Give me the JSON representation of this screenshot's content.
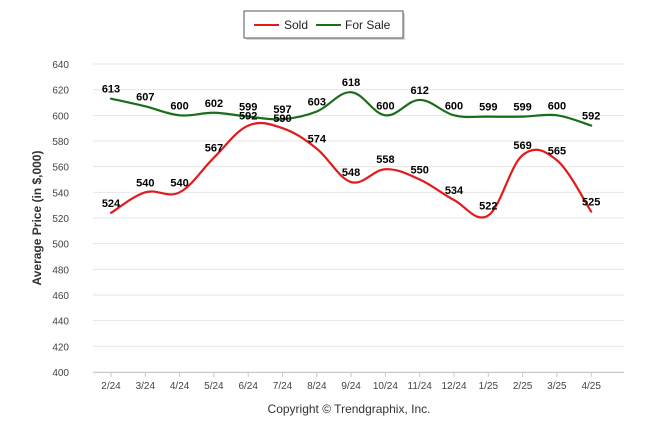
{
  "chart_data": {
    "type": "line",
    "categories": [
      "2/24",
      "3/24",
      "4/24",
      "5/24",
      "6/24",
      "7/24",
      "8/24",
      "9/24",
      "10/24",
      "11/24",
      "12/24",
      "1/25",
      "2/25",
      "3/25",
      "4/25"
    ],
    "series": [
      {
        "name": "Sold",
        "color": "#e31a1c",
        "values": [
          524,
          540,
          540,
          567,
          592,
          590,
          574,
          548,
          558,
          550,
          534,
          522,
          569,
          565,
          525
        ]
      },
      {
        "name": "For Sale",
        "color": "#1a6e1a",
        "values": [
          613,
          607,
          600,
          602,
          599,
          597,
          603,
          618,
          600,
          612,
          600,
          599,
          599,
          600,
          592
        ]
      }
    ],
    "ylabel": "Average Price (in $,000)",
    "ylim": [
      400,
      640
    ],
    "yticks": [
      "400",
      "420",
      "440",
      "460",
      "480",
      "500",
      "520",
      "540",
      "560",
      "580",
      "600",
      "620",
      "640"
    ],
    "grid": true,
    "smooth": true,
    "legend_position": "top-center",
    "caption": "Copyright © Trendgraphix, Inc."
  }
}
